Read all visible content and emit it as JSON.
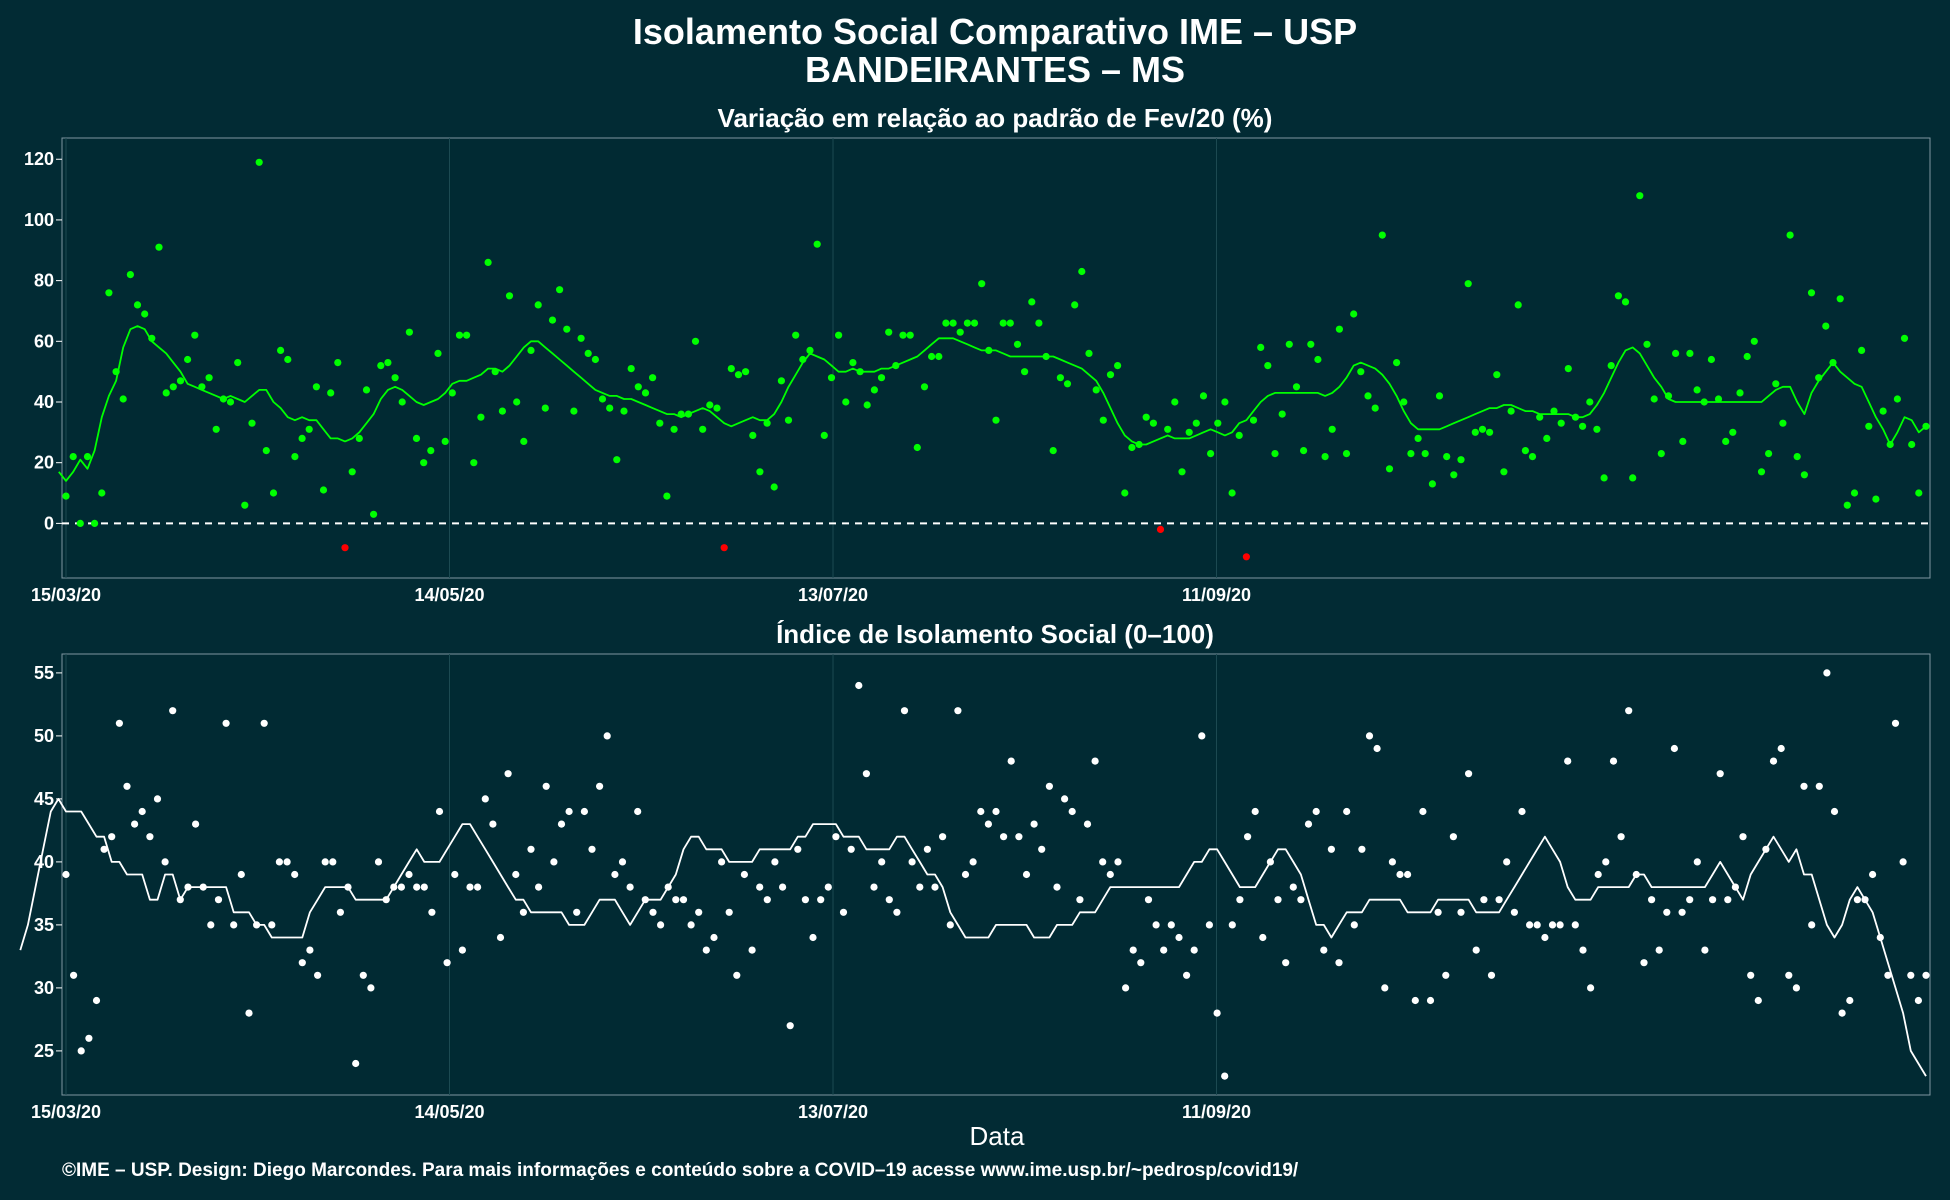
{
  "figure": {
    "title_line1": "Isolamento Social Comparativo IME – USP",
    "title_line2": "BANDEIRANTES – MS",
    "xlabel": "Data",
    "credit": "©IME – USP. Design: Diego Marcondes. Para mais informações e conteúdo sobre a COVID–19 acesse www.ime.usp.br/~pedrosp/covid19/"
  },
  "chart_data": [
    {
      "type": "scatter",
      "title": "Variação em relação ao padrão de Fev/20 (%)",
      "x_start": "15/03/20",
      "x_end": "31/12/20",
      "xticks": [
        {
          "label": "15/03/20",
          "day": 0
        },
        {
          "label": "14/05/20",
          "day": 60
        },
        {
          "label": "13/07/20",
          "day": 120
        },
        {
          "label": "11/09/20",
          "day": 180
        }
      ],
      "ylim": [
        -18,
        127
      ],
      "yticks": [
        0,
        20,
        40,
        60,
        80,
        100,
        120
      ],
      "reference_line": 0,
      "colors": {
        "positive": "#00ff00",
        "negative": "#ff0000",
        "line": "#00ff00",
        "zero_line": "#ffffff"
      },
      "series": [
        {
          "values": [
            9,
            22,
            0,
            22,
            0,
            10,
            76,
            50,
            41,
            82,
            72,
            69,
            61,
            91,
            43,
            45,
            47,
            54,
            62,
            45,
            48,
            31,
            41,
            40,
            53,
            6,
            33,
            119,
            24,
            10,
            57,
            54,
            22,
            28,
            31,
            45,
            11,
            43,
            53,
            -8,
            17,
            28,
            44,
            3,
            52,
            53,
            48,
            40,
            63,
            28,
            20,
            24,
            56,
            27,
            43,
            62,
            62,
            20,
            35,
            86,
            50,
            37,
            75,
            40,
            27,
            57,
            72,
            38,
            67,
            77,
            64,
            37,
            61,
            56,
            54,
            41,
            38,
            21,
            37,
            51,
            45,
            43,
            48,
            33,
            9,
            31,
            36,
            36,
            60,
            31,
            39,
            38,
            -8,
            51,
            49,
            50,
            29,
            17,
            33,
            12,
            47,
            34,
            62,
            54,
            57,
            92,
            29,
            48,
            62,
            40,
            53,
            50,
            39,
            44,
            48,
            63,
            52,
            62,
            62,
            25,
            45,
            55,
            55,
            66,
            66,
            63,
            66,
            66,
            79,
            57,
            34,
            66,
            66,
            59,
            50,
            73,
            66,
            55,
            24,
            48,
            46,
            72,
            83,
            56,
            44,
            34,
            49,
            52,
            10,
            25,
            26,
            35,
            33,
            -2,
            31,
            40,
            17,
            30,
            33,
            42,
            23,
            33,
            40,
            10,
            29,
            -11,
            34,
            58,
            52,
            23,
            36,
            59,
            45,
            24,
            59,
            54,
            22,
            31,
            64,
            23,
            69,
            50,
            42,
            38,
            95,
            18,
            53,
            40,
            23,
            28,
            23,
            13,
            42,
            22,
            16,
            21,
            79,
            30,
            31,
            30,
            49,
            17,
            37,
            72,
            24,
            22,
            35,
            28,
            37,
            33,
            51,
            35,
            32,
            40,
            31,
            15,
            52,
            75,
            73,
            15,
            108,
            59,
            41,
            23,
            42,
            56,
            27,
            56,
            44,
            40,
            54,
            41,
            27,
            30,
            43,
            55,
            60,
            17,
            23,
            46,
            33,
            95,
            22,
            16,
            76,
            48,
            65,
            53,
            74,
            6,
            10,
            57,
            32,
            8,
            37,
            26,
            41,
            61,
            26,
            10,
            32
          ]
        }
      ],
      "moving_average": [
        17,
        14,
        17,
        21,
        18,
        24,
        35,
        42,
        47,
        58,
        64,
        65,
        64,
        60,
        58,
        56,
        53,
        50,
        46,
        45,
        44,
        43,
        42,
        41,
        42,
        41,
        40,
        42,
        44,
        44,
        40,
        38,
        35,
        34,
        35,
        34,
        34,
        31,
        28,
        28,
        27,
        28,
        30,
        33,
        36,
        41,
        44,
        45,
        44,
        42,
        40,
        39,
        40,
        41,
        43,
        46,
        47,
        47,
        48,
        49,
        51,
        51,
        50,
        52,
        55,
        58,
        60,
        60,
        58,
        56,
        54,
        52,
        50,
        48,
        46,
        44,
        43,
        42,
        42,
        41,
        41,
        40,
        39,
        38,
        37,
        36,
        36,
        35,
        36,
        37,
        38,
        37,
        35,
        33,
        32,
        33,
        34,
        35,
        34,
        34,
        36,
        40,
        45,
        49,
        53,
        56,
        55,
        54,
        52,
        50,
        50,
        51,
        50,
        50,
        50,
        51,
        51,
        52,
        53,
        54,
        55,
        57,
        59,
        61,
        61,
        61,
        60,
        59,
        58,
        57,
        57,
        57,
        56,
        55,
        55,
        55,
        55,
        55,
        55,
        55,
        54,
        53,
        52,
        51,
        49,
        47,
        43,
        38,
        33,
        29,
        27,
        26,
        26,
        27,
        28,
        29,
        28,
        28,
        28,
        29,
        30,
        31,
        30,
        29,
        30,
        33,
        34,
        37,
        40,
        42,
        43,
        43,
        43,
        43,
        43,
        43,
        43,
        42,
        43,
        45,
        48,
        52,
        53,
        52,
        51,
        49,
        46,
        42,
        37,
        33,
        31,
        31,
        31,
        31,
        32,
        33,
        34,
        35,
        36,
        37,
        38,
        38,
        39,
        39,
        38,
        37,
        37,
        36,
        36,
        36,
        36,
        36,
        35,
        35,
        36,
        39,
        43,
        48,
        53,
        57,
        58,
        56,
        52,
        48,
        45,
        41,
        40,
        40,
        40,
        40,
        40,
        40,
        40,
        40,
        40,
        40,
        40,
        40,
        40,
        42,
        44,
        45,
        45,
        40,
        36,
        43,
        47,
        50,
        53,
        50,
        48,
        46,
        45,
        40,
        35,
        31,
        26,
        30,
        35,
        34,
        30,
        32
      ]
    },
    {
      "type": "scatter",
      "title": "Índice de Isolamento Social (0–100)",
      "x_start": "15/03/20",
      "x_end": "31/12/20",
      "xticks": [
        {
          "label": "15/03/20",
          "day": 0
        },
        {
          "label": "14/05/20",
          "day": 60
        },
        {
          "label": "13/07/20",
          "day": 120
        },
        {
          "label": "11/09/20",
          "day": 180
        }
      ],
      "ylim": [
        21.5,
        56.5
      ],
      "yticks": [
        25,
        30,
        35,
        40,
        45,
        50,
        55
      ],
      "colors": {
        "points": "#ffffff",
        "line": "#ffffff"
      },
      "series": [
        {
          "values": [
            39,
            31,
            25,
            26,
            29,
            41,
            42,
            51,
            46,
            43,
            44,
            42,
            45,
            40,
            52,
            37,
            38,
            43,
            38,
            35,
            37,
            51,
            35,
            39,
            28,
            35,
            51,
            35,
            40,
            40,
            39,
            32,
            33,
            31,
            40,
            40,
            36,
            38,
            24,
            31,
            30,
            40,
            37,
            38,
            38,
            39,
            38,
            38,
            36,
            44,
            32,
            39,
            33,
            38,
            38,
            45,
            43,
            34,
            47,
            39,
            36,
            41,
            38,
            46,
            40,
            43,
            44,
            36,
            44,
            41,
            46,
            50,
            39,
            40,
            38,
            44,
            37,
            36,
            35,
            38,
            37,
            37,
            35,
            36,
            33,
            34,
            40,
            36,
            31,
            39,
            33,
            38,
            37,
            40,
            38,
            27,
            41,
            37,
            34,
            37,
            38,
            42,
            36,
            41,
            54,
            47,
            38,
            40,
            37,
            36,
            52,
            40,
            38,
            41,
            38,
            42,
            35,
            52,
            39,
            40,
            44,
            43,
            44,
            42,
            48,
            42,
            39,
            43,
            41,
            46,
            38,
            45,
            44,
            37,
            43,
            48,
            40,
            39,
            40,
            30,
            33,
            32,
            37,
            35,
            33,
            35,
            34,
            31,
            33,
            50,
            35,
            28,
            23,
            35,
            37,
            42,
            44,
            34,
            40,
            37,
            32,
            38,
            37,
            43,
            44,
            33,
            41,
            32,
            44,
            35,
            41,
            50,
            49,
            30,
            40,
            39,
            39,
            29,
            44,
            29,
            36,
            31,
            42,
            36,
            47,
            33,
            37,
            31,
            37,
            40,
            36,
            44,
            35,
            35,
            34,
            35,
            35,
            48,
            35,
            33,
            30,
            39,
            40,
            48,
            42,
            52,
            39,
            32,
            37,
            33,
            36,
            49,
            36,
            37,
            40,
            33,
            37,
            47,
            37,
            38,
            42,
            31,
            29,
            41,
            48,
            49,
            31,
            30,
            46,
            35,
            46,
            55,
            44,
            28,
            29,
            37,
            37,
            39,
            34,
            31,
            51,
            40,
            31,
            29,
            31
          ]
        }
      ],
      "moving_average": [
        33,
        35,
        38,
        41,
        44,
        45,
        44,
        44,
        44,
        43,
        42,
        42,
        40,
        40,
        39,
        39,
        39,
        37,
        37,
        39,
        39,
        37,
        38,
        38,
        38,
        38,
        38,
        38,
        36,
        36,
        36,
        35,
        35,
        34,
        34,
        34,
        34,
        34,
        36,
        37,
        38,
        38,
        38,
        38,
        37,
        37,
        37,
        37,
        37,
        38,
        39,
        40,
        41,
        40,
        40,
        40,
        41,
        42,
        43,
        43,
        42,
        41,
        40,
        39,
        38,
        37,
        37,
        36,
        36,
        36,
        36,
        36,
        35,
        35,
        35,
        36,
        37,
        37,
        37,
        36,
        35,
        36,
        37,
        37,
        37,
        38,
        39,
        41,
        42,
        42,
        41,
        41,
        41,
        40,
        40,
        40,
        40,
        41,
        41,
        41,
        41,
        41,
        42,
        42,
        43,
        43,
        43,
        43,
        42,
        42,
        42,
        41,
        41,
        41,
        41,
        42,
        42,
        41,
        40,
        39,
        39,
        38,
        36,
        35,
        34,
        34,
        34,
        34,
        35,
        35,
        35,
        35,
        35,
        34,
        34,
        34,
        35,
        35,
        35,
        36,
        36,
        36,
        37,
        38,
        38,
        38,
        38,
        38,
        38,
        38,
        38,
        38,
        38,
        39,
        40,
        40,
        41,
        41,
        40,
        39,
        38,
        38,
        38,
        39,
        40,
        41,
        41,
        40,
        39,
        37,
        35,
        35,
        34,
        35,
        36,
        36,
        36,
        37,
        37,
        37,
        37,
        37,
        36,
        36,
        36,
        36,
        37,
        37,
        37,
        37,
        37,
        36,
        36,
        36,
        36,
        37,
        38,
        39,
        40,
        41,
        42,
        41,
        40,
        38,
        37,
        37,
        37,
        38,
        38,
        38,
        38,
        38,
        39,
        39,
        38,
        38,
        38,
        38,
        38,
        38,
        38,
        38,
        39,
        40,
        39,
        38,
        37,
        39,
        40,
        41,
        42,
        41,
        40,
        41,
        39,
        39,
        37,
        35,
        34,
        35,
        37,
        38,
        37,
        36,
        34,
        32,
        30,
        28,
        25,
        24,
        23
      ]
    }
  ]
}
